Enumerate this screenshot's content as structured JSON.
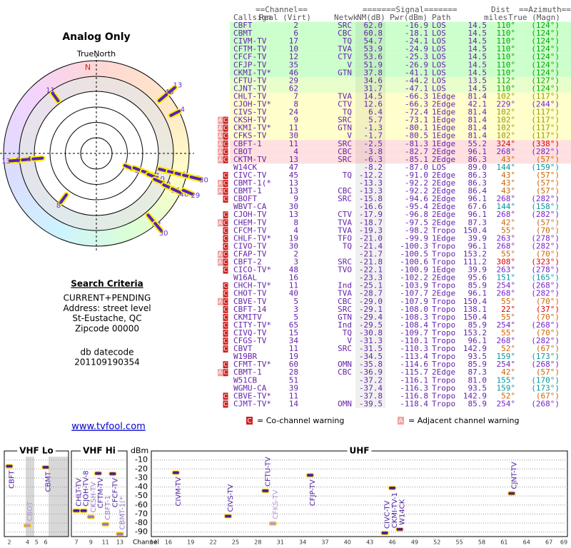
{
  "left": {
    "title": "Analog Only",
    "north_label": "TrueNorth",
    "n": "N",
    "criteria_title": "Search Criteria",
    "criteria": [
      "CURRENT+PENDING",
      "Address: street level",
      "St-Eustache, QC",
      "Zipcode 00000"
    ],
    "datecode_label": "db datecode",
    "datecode": "201109190354",
    "link": "www.tvfool.com"
  },
  "polar": {
    "marks": [
      {
        "label": "11",
        "az": 324,
        "r": 4.5
      },
      {
        "label": "13",
        "az": 50,
        "r": 6.3
      },
      {
        "label": "45",
        "az": 50,
        "r": 5.6
      },
      {
        "label": "4",
        "az": 63,
        "r": 5.7
      },
      {
        "label": "13",
        "az": 265,
        "r": 5.3
      },
      {
        "label": "9",
        "az": 265,
        "r": 4.5
      },
      {
        "label": "4",
        "az": 265,
        "r": 3.8
      },
      {
        "label": "8",
        "az": 216,
        "r": 3.6
      },
      {
        "label": "2",
        "az": 113,
        "r": 2.3
      },
      {
        "label": "6",
        "az": 111,
        "r": 2.9
      },
      {
        "label": "17",
        "az": 111,
        "r": 3.5
      },
      {
        "label": "10",
        "az": 112,
        "r": 3.9
      },
      {
        "label": "12",
        "az": 114,
        "r": 4.4
      },
      {
        "label": "35",
        "az": 115,
        "r": 5.1
      },
      {
        "label": "46",
        "az": 115,
        "r": 5.7
      },
      {
        "label": "29",
        "az": 113,
        "r": 6.4
      },
      {
        "label": "7",
        "az": 104,
        "r": 4.5
      },
      {
        "label": "24",
        "az": 104,
        "r": 5.1
      },
      {
        "label": "9",
        "az": 104,
        "r": 5.6
      },
      {
        "label": "11",
        "az": 104,
        "r": 6.1
      },
      {
        "label": "30",
        "az": 104,
        "r": 6.6
      },
      {
        "label": "47",
        "az": 140,
        "r": 5.5
      },
      {
        "label": "30",
        "az": 140,
        "r": 6.2
      }
    ]
  },
  "table": {
    "header_top": [
      "==Channel==",
      "=======Signal=======",
      "Dist",
      "==Azimuth=="
    ],
    "header": [
      "Callsign",
      "Real (Virt)",
      "Netwk",
      "NM(dB)",
      "Pwr(dBm)",
      "Path",
      "miles",
      "True (Magn)"
    ],
    "rows": [
      {
        "call": "CBFT",
        "real": "2",
        "net": "SRC",
        "nm": "62.0",
        "pwr": "-16.9",
        "path": "LOS",
        "dist": "14.5",
        "t": "110°",
        "m": "(124°)",
        "bg": "#ccffcc",
        "az": "#00aa00"
      },
      {
        "call": "CBMT",
        "real": "6",
        "net": "CBC",
        "nm": "60.8",
        "pwr": "-18.1",
        "path": "LOS",
        "dist": "14.5",
        "t": "110°",
        "m": "(124°)",
        "bg": "#ccffcc",
        "az": "#00aa00"
      },
      {
        "call": "CIVM-TV",
        "real": "17",
        "net": "TQ",
        "nm": "54.7",
        "pwr": "-24.1",
        "path": "LOS",
        "dist": "14.5",
        "t": "110°",
        "m": "(124°)",
        "bg": "#ccffcc",
        "az": "#00aa00"
      },
      {
        "call": "CFTM-TV",
        "real": "10",
        "net": "TVA",
        "nm": "53.9",
        "pwr": "-24.9",
        "path": "LOS",
        "dist": "14.5",
        "t": "110°",
        "m": "(124°)",
        "bg": "#ccffcc",
        "az": "#00aa00"
      },
      {
        "call": "CFCF-TV",
        "real": "12",
        "net": "CTV",
        "nm": "53.6",
        "pwr": "-25.3",
        "path": "LOS",
        "dist": "14.5",
        "t": "110°",
        "m": "(124°)",
        "bg": "#ccffcc",
        "az": "#00aa00"
      },
      {
        "call": "CFJP-TV",
        "real": "35",
        "net": "V",
        "nm": "51.9",
        "pwr": "-26.9",
        "path": "LOS",
        "dist": "14.5",
        "t": "110°",
        "m": "(124°)",
        "bg": "#ccffcc",
        "az": "#00aa00"
      },
      {
        "call": "CKMI-TV*",
        "real": "46",
        "net": "GTN",
        "nm": "37.8",
        "pwr": "-41.1",
        "path": "LOS",
        "dist": "14.5",
        "t": "110°",
        "m": "(124°)",
        "bg": "#ccffcc",
        "az": "#00aa00"
      },
      {
        "call": "CFTU-TV",
        "real": "29",
        "nm": "34.6",
        "pwr": "-44.2",
        "path": "LOS",
        "dist": "13.5",
        "t": "112°",
        "m": "(127°)",
        "bg": "#e8ffcc",
        "az": "#00aa00"
      },
      {
        "call": "CJNT-TV",
        "real": "62",
        "nm": "31.7",
        "pwr": "-47.1",
        "path": "LOS",
        "dist": "14.5",
        "t": "110°",
        "m": "(124°)",
        "bg": "#e8ffcc",
        "az": "#00aa00"
      },
      {
        "call": "CHLT-TV",
        "real": "7",
        "net": "TVA",
        "nm": "14.5",
        "pwr": "-66.3",
        "path": "1Edge",
        "dist": "81.4",
        "t": "102°",
        "m": "(117°)",
        "bg": "#ffffcc",
        "az": "#999900"
      },
      {
        "call": "CJOH-TV*",
        "real": "8",
        "net": "CTV",
        "nm": "12.6",
        "pwr": "-66.3",
        "path": "2Edge",
        "dist": "42.1",
        "t": "229°",
        "m": "(244°)",
        "bg": "#ffffcc",
        "az": "#7722cc"
      },
      {
        "call": "CIVS-TV",
        "real": "24",
        "net": "TQ",
        "nm": "6.4",
        "pwr": "-72.4",
        "path": "1Edge",
        "dist": "81.4",
        "t": "102°",
        "m": "(117°)",
        "bg": "#ffffcc",
        "az": "#999900"
      },
      {
        "warn": [
          "A",
          "C"
        ],
        "call": "CKSH-TV",
        "real": "9",
        "net": "SRC",
        "nm": "5.7",
        "pwr": "-73.1",
        "path": "1Edge",
        "dist": "81.4",
        "t": "102°",
        "m": "(117°)",
        "bg": "#ffffcc",
        "az": "#999900"
      },
      {
        "warn": [
          "A",
          "C"
        ],
        "call": "CKMI-TV*",
        "real": "11",
        "net": "GTN",
        "nm": "-1.3",
        "pwr": "-80.1",
        "path": "1Edge",
        "dist": "81.4",
        "t": "102°",
        "m": "(117°)",
        "bg": "#ffffcc",
        "az": "#999900"
      },
      {
        "warn": [
          "A",
          "C"
        ],
        "call": "CFKS-TV",
        "real": "30",
        "net": "V",
        "nm": "-1.7",
        "pwr": "-80.5",
        "path": "1Edge",
        "dist": "81.4",
        "t": "102°",
        "m": "(117°)",
        "bg": "#ffffcc",
        "az": "#999900"
      },
      {
        "warn": [
          "A",
          "C"
        ],
        "call": "CBFT-1",
        "real": "11",
        "net": "SRC",
        "nm": "-2.5",
        "pwr": "-81.3",
        "path": "1Edge",
        "dist": "55.2",
        "t": "324°",
        "m": "(338°)",
        "bg": "#ffe0e0",
        "az": "#dd0000"
      },
      {
        "warn": [
          "A",
          "C"
        ],
        "call": "CBOT",
        "real": "4",
        "net": "CBC",
        "nm": "-3.8",
        "pwr": "-82.7",
        "path": "2Edge",
        "dist": "96.1",
        "t": "268°",
        "m": "(282°)",
        "bg": "#ffe0e0",
        "az": "#7722cc"
      },
      {
        "warn": [
          "A",
          "C"
        ],
        "call": "CKTM-TV",
        "real": "13",
        "net": "SRC",
        "nm": "-6.3",
        "pwr": "-85.1",
        "path": "2Edge",
        "dist": "86.3",
        "t": "43°",
        "m": "(57°)",
        "bg": "#ffe0e0",
        "az": "#cc6600"
      },
      {
        "call": "W14CK",
        "real": "47",
        "nm": "-8.2",
        "pwr": "-87.0",
        "path": "LOS",
        "dist": "89.0",
        "t": "144°",
        "m": "(159°)",
        "bg": "#ffffff",
        "az": "#009999"
      },
      {
        "warn": [
          "C"
        ],
        "call": "CIVC-TV",
        "real": "45",
        "net": "TQ",
        "nm": "-12.2",
        "pwr": "-91.0",
        "path": "2Edge",
        "dist": "86.3",
        "t": "43°",
        "m": "(57°)",
        "bg": "#ffffff",
        "az": "#cc6600"
      },
      {
        "warn": [
          "A",
          "C"
        ],
        "call": "CBMT-1(*",
        "real": "13",
        "nm": "-13.3",
        "pwr": "-92.2",
        "path": "2Edge",
        "dist": "86.3",
        "t": "43°",
        "m": "(57°)",
        "bg": "#ffffff",
        "az": "#cc6600"
      },
      {
        "warn": [
          "A",
          "C"
        ],
        "call": "CBMT-1",
        "real": "13",
        "net": "CBC",
        "nm": "-13.3",
        "pwr": "-92.2",
        "path": "2Edge",
        "dist": "86.4",
        "t": "43°",
        "m": "(57°)",
        "bg": "#ffffff",
        "az": "#cc6600"
      },
      {
        "warn": [
          "C"
        ],
        "call": "CBOFT",
        "real": "9",
        "net": "SRC",
        "nm": "-15.8",
        "pwr": "-94.6",
        "path": "2Edge",
        "dist": "96.1",
        "t": "268°",
        "m": "(282°)",
        "bg": "#ffffff",
        "az": "#7722cc"
      },
      {
        "call": "WBVT-CA",
        "real": "30",
        "nm": "-16.6",
        "pwr": "-95.4",
        "path": "2Edge",
        "dist": "67.6",
        "t": "144°",
        "m": "(158°)",
        "bg": "#ffffff",
        "az": "#009999"
      },
      {
        "warn": [
          "C"
        ],
        "call": "CJOH-TV",
        "real": "13",
        "net": "CTV",
        "nm": "-17.9",
        "pwr": "-96.8",
        "path": "2Edge",
        "dist": "96.1",
        "t": "268°",
        "m": "(282°)",
        "bg": "#ffffff",
        "az": "#7722cc"
      },
      {
        "warn": [
          "A",
          "C"
        ],
        "call": "CHEM-TV",
        "real": "8",
        "net": "TVA",
        "nm": "-18.7",
        "pwr": "-97.5",
        "path": "2Edge",
        "dist": "87.3",
        "t": "42°",
        "m": "(57°)",
        "bg": "#ffffff",
        "az": "#cc6600"
      },
      {
        "warn": [
          "C"
        ],
        "call": "CFCM-TV",
        "real": "4",
        "net": "TVA",
        "nm": "-19.3",
        "pwr": "-98.2",
        "path": "Tropo",
        "dist": "150.4",
        "t": "55°",
        "m": "(70°)",
        "bg": "#ffffff",
        "az": "#cc6600"
      },
      {
        "warn": [
          "C"
        ],
        "call": "CHLF-TV*",
        "real": "19",
        "net": "TFO",
        "nm": "-21.0",
        "pwr": "-99.9",
        "path": "1Edge",
        "dist": "39.9",
        "t": "263°",
        "m": "(278°)",
        "bg": "#ffffff",
        "az": "#7722cc"
      },
      {
        "warn": [
          "C"
        ],
        "call": "CIVO-TV",
        "real": "30",
        "net": "TQ",
        "nm": "-21.4",
        "pwr": "-100.3",
        "path": "Tropo",
        "dist": "96.1",
        "t": "268°",
        "m": "(282°)",
        "bg": "#ffffff",
        "az": "#7722cc"
      },
      {
        "warn": [
          "A",
          "C"
        ],
        "call": "CFAP-TV",
        "real": "2",
        "nm": "-21.7",
        "pwr": "-100.5",
        "path": "Tropo",
        "dist": "153.2",
        "t": "55°",
        "m": "(70°)",
        "bg": "#ffffff",
        "az": "#cc6600"
      },
      {
        "warn": [
          "A",
          "C"
        ],
        "call": "CBFT-2",
        "real": "3",
        "net": "SRC",
        "nm": "-21.8",
        "pwr": "-100.6",
        "path": "Tropo",
        "dist": "111.2",
        "t": "308°",
        "m": "(323°)",
        "bg": "#ffffff",
        "az": "#dd0000"
      },
      {
        "warn": [
          "C"
        ],
        "call": "CICO-TV*",
        "real": "48",
        "net": "TVO",
        "nm": "-22.1",
        "pwr": "-100.9",
        "path": "1Edge",
        "dist": "39.9",
        "t": "263°",
        "m": "(278°)",
        "bg": "#ffffff",
        "az": "#7722cc"
      },
      {
        "call": "W16AL",
        "real": "16",
        "nm": "-23.3",
        "pwr": "-102.2",
        "path": "2Edge",
        "dist": "95.6",
        "t": "151°",
        "m": "(165°)",
        "bg": "#ffffff",
        "az": "#009999"
      },
      {
        "warn": [
          "C"
        ],
        "call": "CHCH-TV*",
        "real": "11",
        "net": "Ind",
        "nm": "-25.1",
        "pwr": "-103.9",
        "path": "Tropo",
        "dist": "85.9",
        "t": "254°",
        "m": "(268°)",
        "bg": "#ffffff",
        "az": "#7722cc"
      },
      {
        "warn": [
          "C"
        ],
        "call": "CHOT-TV",
        "real": "40",
        "net": "TVA",
        "nm": "-28.7",
        "pwr": "-107.7",
        "path": "2Edge",
        "dist": "96.1",
        "t": "268°",
        "m": "(282°)",
        "bg": "#ffffff",
        "az": "#7722cc"
      },
      {
        "warn": [
          "A",
          "C"
        ],
        "call": "CBVE-TV",
        "real": "5",
        "net": "CBC",
        "nm": "-29.0",
        "pwr": "-107.9",
        "path": "Tropo",
        "dist": "150.4",
        "t": "55°",
        "m": "(70°)",
        "bg": "#ffffff",
        "az": "#cc6600"
      },
      {
        "warn": [
          "C"
        ],
        "call": "CBFT-14",
        "real": "3",
        "net": "SRC",
        "nm": "-29.1",
        "pwr": "-108.0",
        "path": "Tropo",
        "dist": "138.1",
        "t": "22°",
        "m": "(37°)",
        "bg": "#ffffff",
        "az": "#dd0000"
      },
      {
        "warn": [
          "C"
        ],
        "call": "CKMITV",
        "real": "5",
        "net": "GTN",
        "nm": "-29.4",
        "pwr": "-108.3",
        "path": "Tropo",
        "dist": "150.4",
        "t": "55°",
        "m": "(70°)",
        "bg": "#ffffff",
        "az": "#cc6600"
      },
      {
        "warn": [
          "C"
        ],
        "call": "CITY-TV*",
        "real": "65",
        "net": "Ind",
        "nm": "-29.5",
        "pwr": "-108.4",
        "path": "Tropo",
        "dist": "85.9",
        "t": "254°",
        "m": "(268°)",
        "bg": "#ffffff",
        "az": "#7722cc"
      },
      {
        "warn": [
          "C"
        ],
        "call": "CIVQ-TV",
        "real": "15",
        "net": "TQ",
        "nm": "-30.8",
        "pwr": "-109.7",
        "path": "Tropo",
        "dist": "153.2",
        "t": "55°",
        "m": "(70°)",
        "bg": "#ffffff",
        "az": "#cc6600"
      },
      {
        "warn": [
          "C"
        ],
        "call": "CFGS-TV",
        "real": "34",
        "net": "V",
        "nm": "-31.3",
        "pwr": "-110.1",
        "path": "Tropo",
        "dist": "96.1",
        "t": "268°",
        "m": "(282°)",
        "bg": "#ffffff",
        "az": "#7722cc"
      },
      {
        "warn": [
          "C"
        ],
        "call": "CBVT",
        "real": "11",
        "net": "SRC",
        "nm": "-31.5",
        "pwr": "-110.3",
        "path": "Tropo",
        "dist": "142.9",
        "t": "52°",
        "m": "(67°)",
        "bg": "#ffffff",
        "az": "#cc6600"
      },
      {
        "call": "W19BR",
        "real": "19",
        "nm": "-34.5",
        "pwr": "-113.4",
        "path": "Tropo",
        "dist": "93.5",
        "t": "159°",
        "m": "(173°)",
        "bg": "#ffffff",
        "az": "#009999"
      },
      {
        "warn": [
          "C"
        ],
        "call": "CFMT-TV*",
        "real": "60",
        "net": "OMN",
        "nm": "-35.8",
        "pwr": "-114.6",
        "path": "Tropo",
        "dist": "85.9",
        "t": "254°",
        "m": "(268°)",
        "bg": "#ffffff",
        "az": "#7722cc"
      },
      {
        "warn": [
          "A",
          "C"
        ],
        "call": "CBMT-1",
        "real": "28",
        "net": "CBC",
        "nm": "-36.9",
        "pwr": "-115.7",
        "path": "2Edge",
        "dist": "87.3",
        "t": "42°",
        "m": "(57°)",
        "bg": "#ffffff",
        "az": "#cc6600"
      },
      {
        "call": "W51CB",
        "real": "51",
        "nm": "-37.2",
        "pwr": "-116.1",
        "path": "Tropo",
        "dist": "81.0",
        "t": "155°",
        "m": "(170°)",
        "bg": "#ffffff",
        "az": "#009999"
      },
      {
        "call": "WGMU-CA",
        "real": "39",
        "nm": "-37.4",
        "pwr": "-116.3",
        "path": "Tropo",
        "dist": "93.5",
        "t": "159°",
        "m": "(173°)",
        "bg": "#ffffff",
        "az": "#009999"
      },
      {
        "warn": [
          "C"
        ],
        "call": "CBVE-TV*",
        "real": "11",
        "nm": "-37.8",
        "pwr": "-116.8",
        "path": "Tropo",
        "dist": "142.9",
        "t": "52°",
        "m": "(67°)",
        "bg": "#ffffff",
        "az": "#cc6600"
      },
      {
        "warn": [
          "C"
        ],
        "call": "CJMT-TV*",
        "real": "14",
        "net": "OMN",
        "nm": "-39.5",
        "pwr": "-118.4",
        "path": "Tropo",
        "dist": "85.9",
        "t": "254°",
        "m": "(268°)",
        "bg": "#ffffff",
        "az": "#7722cc"
      }
    ]
  },
  "legend": {
    "co_mark": "C",
    "co_text": "= Co-channel warning",
    "adj_mark": "A",
    "adj_text": "= Adjacent channel warning"
  },
  "chart_data": {
    "type": "scatter",
    "y_label": "dBm",
    "x_label": "Channel",
    "bands": [
      {
        "name": "VHF Lo",
        "xlim": [
          2,
          6
        ]
      },
      {
        "name": "VHF Hi",
        "xlim": [
          7,
          13
        ]
      },
      {
        "name": "UHF",
        "xlim": [
          14,
          69
        ]
      }
    ],
    "ylim": [
      -95,
      0
    ],
    "yticks": [
      -10,
      -20,
      -30,
      -40,
      -50,
      -60,
      -70,
      -80,
      -90
    ],
    "xticks": [
      2,
      4,
      5,
      6,
      7,
      9,
      11,
      13,
      14,
      16,
      19,
      22,
      25,
      28,
      31,
      34,
      37,
      40,
      43,
      46,
      49,
      52,
      55,
      58,
      61,
      64,
      67,
      69
    ],
    "labels": [
      "CBFT",
      "CBOT",
      "CBMT",
      "CHLT-TV",
      "CJOH-TV-8",
      "CKSH-TV",
      "CFTM-TV",
      "CBFT-1",
      "CFCF-TV",
      "CBMT-1(*",
      "CIVM-TV",
      "CIVS-TV",
      "CFTU-TV",
      "CFKS-TV",
      "CFJP-TV",
      "CIVC-TV",
      "CKMI-TV-1",
      "W14CK",
      "CJNT-TV"
    ],
    "x": [
      2,
      4,
      6,
      7,
      8,
      9,
      10,
      11,
      12,
      13,
      17,
      24,
      29,
      30,
      35,
      45,
      46,
      47,
      62
    ],
    "values": [
      -16.9,
      -82.7,
      -18.1,
      -66.3,
      -66.3,
      -73.1,
      -24.9,
      -81.3,
      -25.3,
      -92.2,
      -24.1,
      -72.4,
      -44.2,
      -80.5,
      -26.9,
      -91.0,
      -41.1,
      -87.0,
      -47.1
    ],
    "colors": [
      "#4b1d9e",
      "#b898d8",
      "#4b1d9e",
      "#4b1d9e",
      "#4b1d9e",
      "#9a78cc",
      "#4b1d9e",
      "#9a78cc",
      "#4b1d9e",
      "#9a78cc",
      "#4b1d9e",
      "#4b1d9e",
      "#4b1d9e",
      "#b898d8",
      "#4b1d9e",
      "#4b1d9e",
      "#4b1d9e",
      "#4b1d9e",
      "#4b1d9e"
    ]
  }
}
